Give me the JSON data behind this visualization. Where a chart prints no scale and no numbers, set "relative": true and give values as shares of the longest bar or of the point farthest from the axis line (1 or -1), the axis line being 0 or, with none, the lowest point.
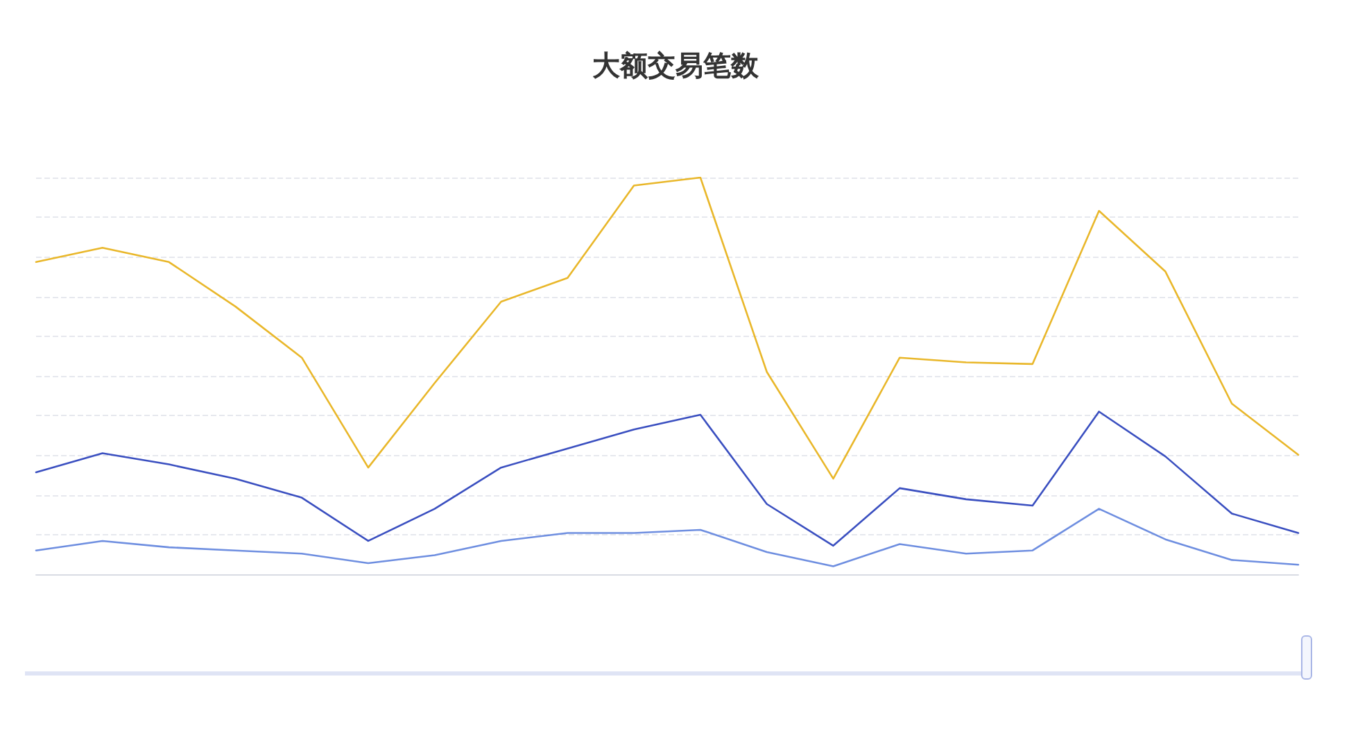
{
  "chart_data": {
    "type": "line",
    "title": "大额交易笔数",
    "relative": true,
    "grid": "y",
    "marker": "none",
    "line_style": "solid",
    "categories": [
      null,
      null,
      null,
      null,
      null,
      null,
      null,
      null,
      null,
      null,
      null,
      null,
      null,
      null,
      null,
      null,
      null,
      null,
      null,
      null
    ],
    "series": [
      {
        "color": "#e9b72a",
        "values": [
          0.787,
          0.823,
          0.787,
          0.675,
          0.546,
          0.269,
          0.482,
          0.687,
          0.747,
          0.98,
          1,
          0.51,
          0.241,
          0.546,
          0.534,
          0.53,
          0.916,
          0.763,
          0.43,
          0.301
        ]
      },
      {
        "color": "#3a4fc0",
        "values": [
          0.257,
          0.305,
          0.277,
          0.241,
          0.193,
          0.084,
          0.165,
          0.269,
          0.317,
          0.365,
          0.402,
          0.177,
          0.072,
          0.217,
          0.189,
          0.173,
          0.41,
          0.297,
          0.153,
          0.104
        ]
      },
      {
        "color": "#6e8ee0",
        "values": [
          0.06,
          0.084,
          0.068,
          0.06,
          0.052,
          0.028,
          0.048,
          0.084,
          0.104,
          0.104,
          0.112,
          0.056,
          0.02,
          0.076,
          0.052,
          0.06,
          0.165,
          0.088,
          0.036,
          0.024
        ]
      }
    ]
  }
}
